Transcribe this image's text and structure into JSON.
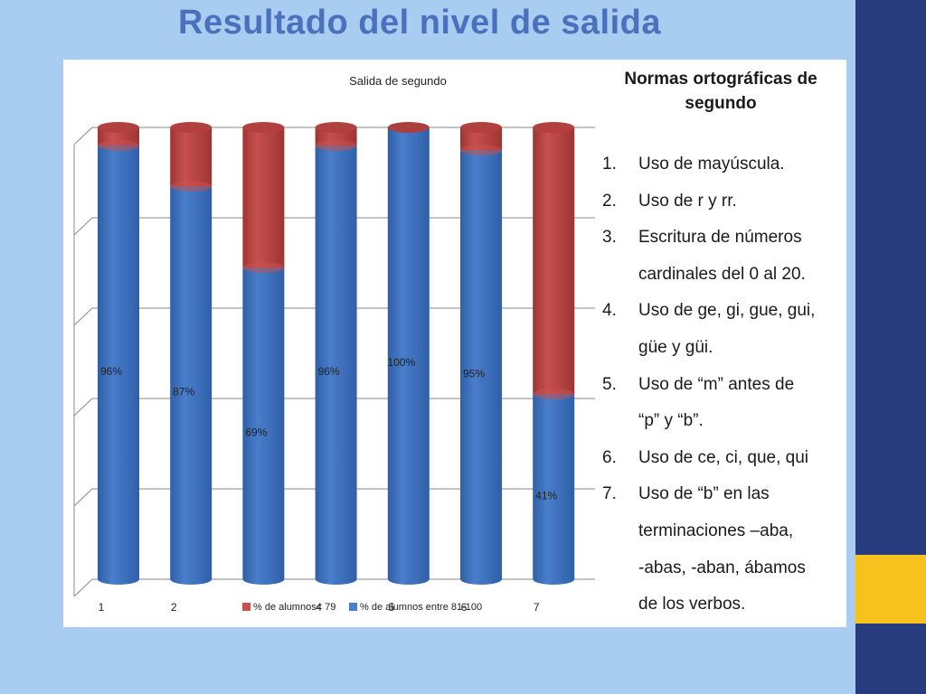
{
  "slide": {
    "title": "Resultado del nivel de salida",
    "colors": {
      "background": "#a9cdf0",
      "band": "#263c7c",
      "gold": "#f7c11e",
      "title": "#4a70be"
    }
  },
  "chart_data": {
    "type": "bar",
    "stacked": true,
    "percent_stacked": true,
    "three_d": true,
    "title": "Salida de segundo",
    "categories": [
      "1",
      "2",
      "3",
      "4",
      "5",
      "6",
      "7"
    ],
    "series": [
      {
        "name": "% de alumnos entre 81-100",
        "color": "#4a7ecb",
        "values": [
          96,
          87,
          69,
          96,
          100,
          95,
          41
        ]
      },
      {
        "name": "% de alumnos< 79",
        "color": "#c8504e",
        "values": [
          4,
          13,
          31,
          4,
          0,
          5,
          59
        ]
      }
    ],
    "data_labels": [
      "96%",
      "87%",
      "69%",
      "96%",
      "100%",
      "95%",
      "41%"
    ],
    "yticks": [
      "0%",
      "20%",
      "40%",
      "60%",
      "80%",
      "100%"
    ],
    "ylim": [
      0,
      100
    ],
    "grid": true,
    "legend_position": "bottom"
  },
  "norms": {
    "title": "Normas ortográficas de segundo",
    "items": [
      {
        "num": "1.",
        "lines": [
          "Uso de mayúscula."
        ]
      },
      {
        "num": "2.",
        "lines": [
          "Uso de r y rr."
        ]
      },
      {
        "num": "3.",
        "lines": [
          "Escritura de números",
          "cardinales del 0 al 20."
        ]
      },
      {
        "num": "4.",
        "lines": [
          "Uso de ge, gi, gue, gui,",
          "güe y güi."
        ]
      },
      {
        "num": "5.",
        "lines": [
          "Uso de “m” antes de",
          "“p” y “b”."
        ]
      },
      {
        "num": "6.",
        "lines": [
          "Uso de ce, ci, que, qui"
        ]
      },
      {
        "num": "7.",
        "lines": [
          "Uso de “b” en las",
          "terminaciones –aba,",
          "-abas, -aban, ábamos",
          "de los verbos."
        ]
      }
    ]
  }
}
